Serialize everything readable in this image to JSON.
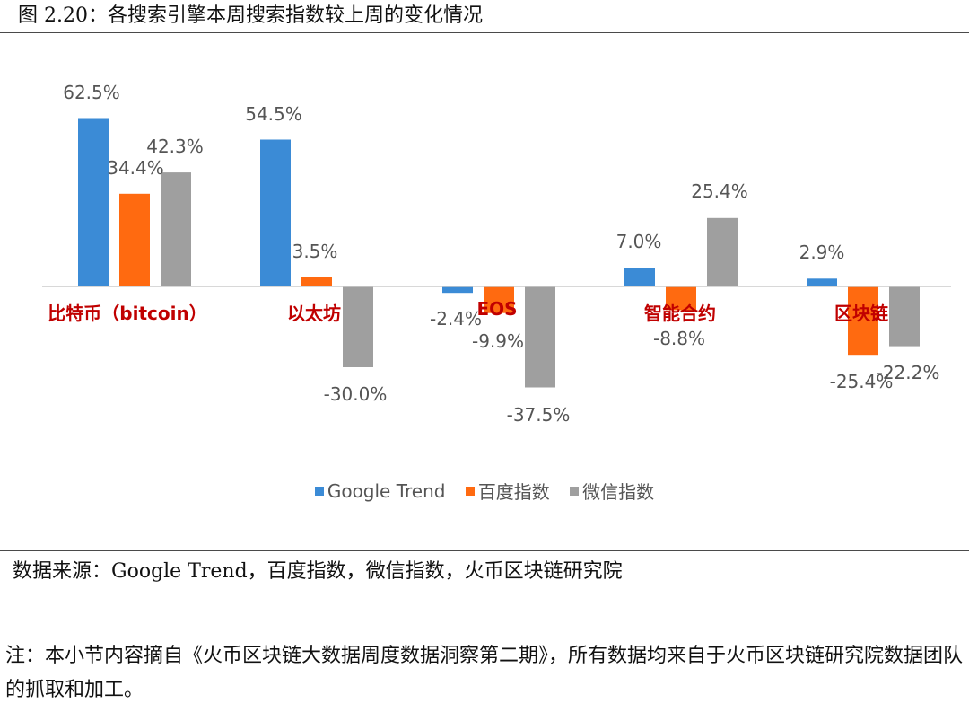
{
  "figure_title": "图 2.20：各搜索引擎本周搜索指数较上周的变化情况",
  "source_text": "数据来源：Google Trend，百度指数，微信指数，火币区块链研究院",
  "note_text": "注：本小节内容摘自《火币区块链大数据周度数据洞察第二期》，所有数据均来自于火币区块链研究院数据团队的抓取和加工。",
  "colors": {
    "google": "#3b8bd6",
    "baidu": "#ff6a10",
    "weixin": "#9f9f9f",
    "category_label": "#c00000",
    "value_label": "#555555",
    "axis": "#cccccc"
  },
  "chart_data": {
    "type": "bar",
    "title": "",
    "xlabel": "",
    "ylabel": "",
    "ylim": [
      -40,
      65
    ],
    "grid": false,
    "legend_position": "bottom",
    "categories": [
      "比特币（bitcoin）",
      "以太坊",
      "EOS",
      "智能合约",
      "区块链"
    ],
    "series": [
      {
        "name": "Google Trend",
        "color": "#3b8bd6",
        "values": [
          62.5,
          54.5,
          -2.4,
          7.0,
          2.9
        ],
        "labels": [
          "62.5%",
          "54.5%",
          "-2.4%",
          "7.0%",
          "2.9%"
        ]
      },
      {
        "name": "百度指数",
        "color": "#ff6a10",
        "values": [
          34.4,
          3.5,
          -9.9,
          -8.8,
          -25.4
        ],
        "labels": [
          "34.4%",
          "3.5%",
          "-9.9%",
          "-8.8%",
          "-25.4%"
        ]
      },
      {
        "name": "微信指数",
        "color": "#9f9f9f",
        "values": [
          42.3,
          -30.0,
          -37.5,
          25.4,
          -22.2
        ],
        "labels": [
          "42.3%",
          "-30.0%",
          "-37.5%",
          "25.4%",
          "-22.2%"
        ]
      }
    ]
  }
}
